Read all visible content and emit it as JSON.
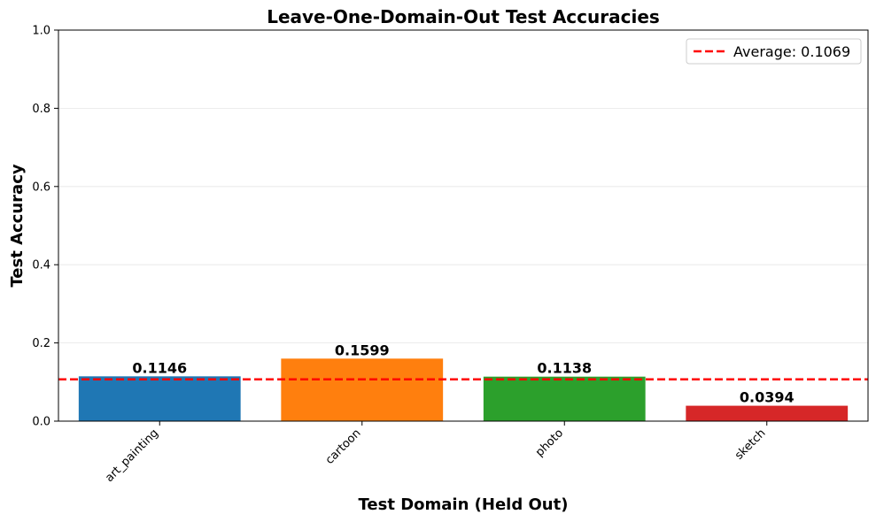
{
  "chart_data": {
    "type": "bar",
    "title": "Leave-One-Domain-Out Test Accuracies",
    "xlabel": "Test Domain (Held Out)",
    "ylabel": "Test Accuracy",
    "ylim": [
      0,
      1.0
    ],
    "yticks": [
      "0.0",
      "0.2",
      "0.4",
      "0.6",
      "0.8",
      "1.0"
    ],
    "categories": [
      "art_painting",
      "cartoon",
      "photo",
      "sketch"
    ],
    "values": [
      0.1146,
      0.1599,
      0.1138,
      0.0394
    ],
    "value_labels": [
      "0.1146",
      "0.1599",
      "0.1138",
      "0.0394"
    ],
    "bar_colors": [
      "#1f77b4",
      "#ff7f0e",
      "#2ca02c",
      "#d62728"
    ],
    "reference_line": {
      "value": 0.1069,
      "label": "Average: 0.1069",
      "color": "#ff0000",
      "style": "dashed"
    },
    "grid": "y-major",
    "legend_position": "top-right"
  }
}
